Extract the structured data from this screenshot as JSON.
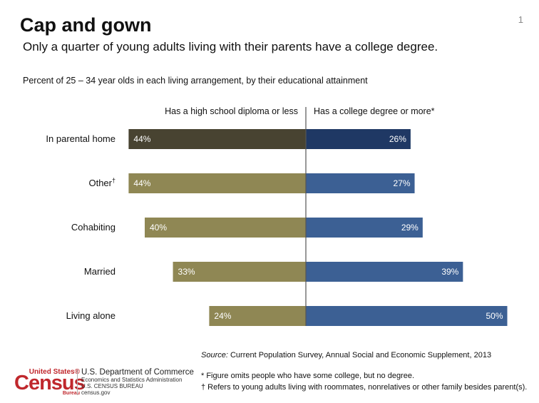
{
  "header": {
    "title": "Cap and gown",
    "subtitle": "Only a quarter of young adults living with their parents have a college degree.",
    "page_number": "1"
  },
  "chart_data": {
    "type": "bar",
    "orientation": "horizontal-diverging",
    "description": "Percent of 25 – 34 year olds in each living arrangement, by their educational attainment",
    "categories": [
      "In parental home",
      "Other",
      "Cohabiting",
      "Married",
      "Living alone"
    ],
    "category_superscripts": [
      "",
      "†",
      "",
      "",
      ""
    ],
    "series": [
      {
        "name": "Has a high school diploma or less",
        "side": "left",
        "values": [
          44,
          44,
          40,
          33,
          24
        ],
        "labels": [
          "44%",
          "44%",
          "40%",
          "33%",
          "24%"
        ],
        "color": "#8F8754",
        "highlight_color": "#484331"
      },
      {
        "name": "Has a college degree or more*",
        "side": "right",
        "values": [
          26,
          27,
          29,
          39,
          50
        ],
        "labels": [
          "26%",
          "27%",
          "29%",
          "39%",
          "50%"
        ],
        "color": "#3C6094",
        "highlight_color": "#1F3864"
      }
    ],
    "highlight_category": "In parental home",
    "divider_color": "#555555",
    "label_color": "#ffffff"
  },
  "footer": {
    "source_label": "Source:",
    "source_text": "Current Population Survey, Annual Social and Economic Supplement, 2013",
    "note1": "* Figure omits people who have some college, but no degree.",
    "note2": "† Refers to young adults living with roommates, nonrelatives or other family besides parent(s).",
    "logo_top": "United States®",
    "logo_main": "Census",
    "logo_bureau": "Bureau",
    "dept_name": "U.S. Department of Commerce",
    "dept_line1": "Economics and Statistics Administration",
    "dept_line2": "U.S. CENSUS BUREAU",
    "dept_line3": "census.gov",
    "brand_color": "#c0282d"
  }
}
